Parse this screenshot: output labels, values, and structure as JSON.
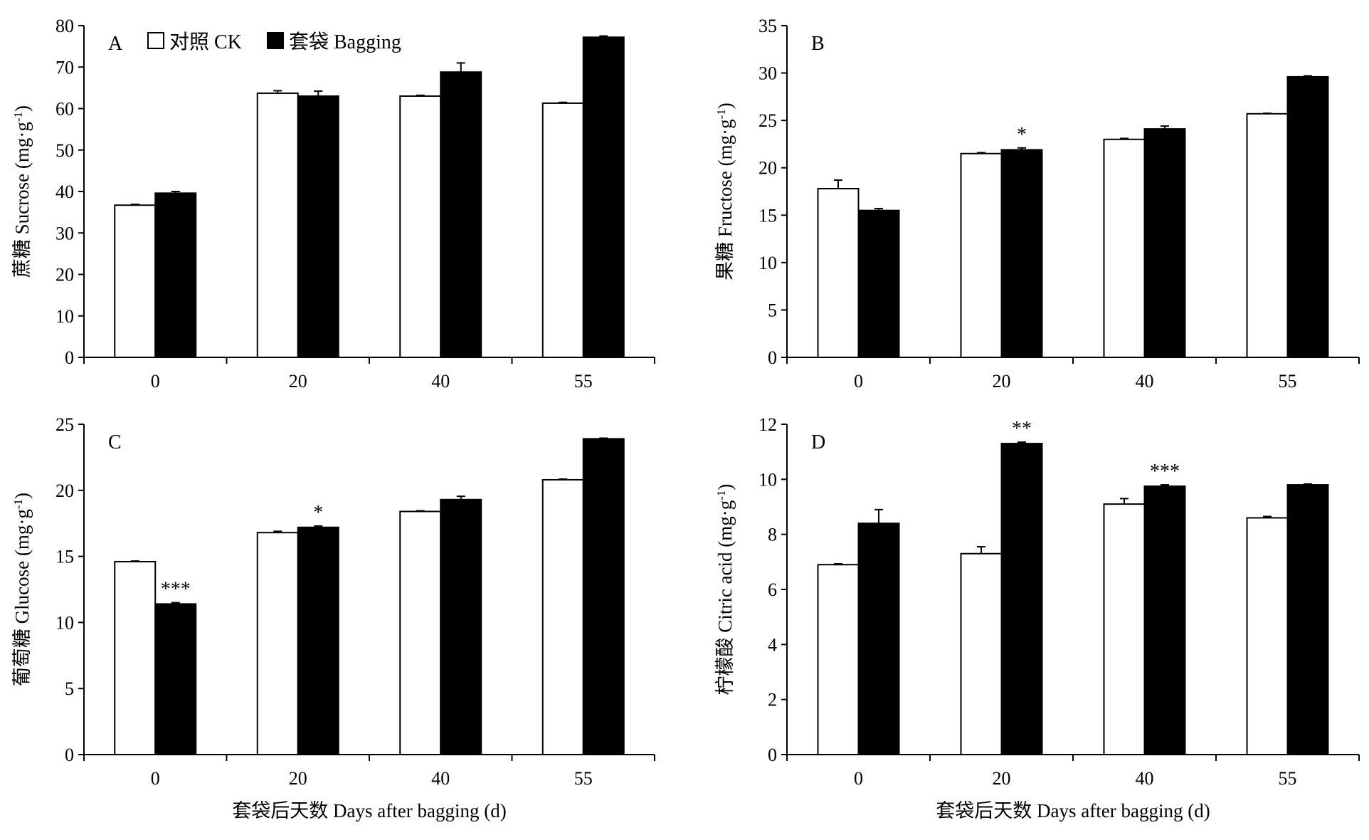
{
  "legend": {
    "items": [
      {
        "label": "对照 CK",
        "fill": "#ffffff"
      },
      {
        "label": "套袋 Bagging",
        "fill": "#000000"
      }
    ]
  },
  "colors": {
    "ck": "#ffffff",
    "bagging": "#000000",
    "stroke": "#000000"
  },
  "chart_data": [
    {
      "type": "bar",
      "panel": "A",
      "ylabel": "蔗糖 Sucrose (mg·g-1)",
      "ylabel_main": "蔗糖 Sucrose (mg·g",
      "ylabel_sup": "-1",
      "ylabel_close": ")",
      "xlabel": "",
      "ylim": [
        0,
        80
      ],
      "yticks": [
        0,
        10,
        20,
        30,
        40,
        50,
        60,
        70,
        80
      ],
      "categories": [
        "0",
        "20",
        "40",
        "55"
      ],
      "series": [
        {
          "name": "对照 CK",
          "values": [
            36.7,
            63.7,
            63.0,
            61.3
          ],
          "errors": [
            0.2,
            0.6,
            0.2,
            0.2
          ]
        },
        {
          "name": "套袋 Bagging",
          "values": [
            39.6,
            63.0,
            68.8,
            77.2
          ],
          "errors": [
            0.4,
            1.2,
            2.2,
            0.3
          ]
        }
      ],
      "annotations": [
        "",
        "",
        "",
        ""
      ],
      "legend_position": "top-left"
    },
    {
      "type": "bar",
      "panel": "B",
      "ylabel": "果糖 Fructose (mg·g-1)",
      "ylabel_main": "果糖 Fructose (mg·g",
      "ylabel_sup": "-1",
      "ylabel_close": ")",
      "xlabel": "",
      "ylim": [
        0,
        35
      ],
      "yticks": [
        0,
        5,
        10,
        15,
        20,
        25,
        30,
        35
      ],
      "categories": [
        "0",
        "20",
        "40",
        "55"
      ],
      "series": [
        {
          "name": "对照 CK",
          "values": [
            17.8,
            21.5,
            23.0,
            25.7
          ],
          "errors": [
            0.9,
            0.1,
            0.1,
            0.05
          ]
        },
        {
          "name": "套袋 Bagging",
          "values": [
            15.5,
            21.9,
            24.1,
            29.6
          ],
          "errors": [
            0.2,
            0.2,
            0.3,
            0.1
          ]
        }
      ],
      "annotations": [
        "",
        "*",
        "",
        ""
      ]
    },
    {
      "type": "bar",
      "panel": "C",
      "ylabel": "葡萄糖 Glucose (mg·g-1)",
      "ylabel_main": "葡萄糖 Glucose (mg·g",
      "ylabel_sup": "-1",
      "ylabel_close": ")",
      "xlabel": "套袋后天数 Days after bagging (d)",
      "ylim": [
        0,
        25
      ],
      "yticks": [
        0,
        5,
        10,
        15,
        20,
        25
      ],
      "categories": [
        "0",
        "20",
        "40",
        "55"
      ],
      "series": [
        {
          "name": "对照 CK",
          "values": [
            14.6,
            16.8,
            18.4,
            20.8
          ],
          "errors": [
            0.05,
            0.1,
            0.05,
            0.05
          ]
        },
        {
          "name": "套袋 Bagging",
          "values": [
            11.4,
            17.2,
            19.3,
            23.9
          ],
          "errors": [
            0.1,
            0.1,
            0.25,
            0.05
          ]
        }
      ],
      "annotations": [
        "***",
        "*",
        "",
        ""
      ]
    },
    {
      "type": "bar",
      "panel": "D",
      "ylabel": "柠檬酸 Citric acid (mg·g-1)",
      "ylabel_main": "柠檬酸 Citric acid (mg·g",
      "ylabel_sup": "-1",
      "ylabel_close": ")",
      "xlabel": "套袋后天数 Days after bagging (d)",
      "ylim": [
        0,
        12
      ],
      "yticks": [
        0,
        2,
        4,
        6,
        8,
        10,
        12
      ],
      "categories": [
        "0",
        "20",
        "40",
        "55"
      ],
      "series": [
        {
          "name": "对照 CK",
          "values": [
            6.9,
            7.3,
            9.1,
            8.6
          ],
          "errors": [
            0.03,
            0.25,
            0.2,
            0.05
          ]
        },
        {
          "name": "套袋 Bagging",
          "values": [
            8.4,
            11.3,
            9.75,
            9.8
          ],
          "errors": [
            0.5,
            0.05,
            0.05,
            0.03
          ]
        }
      ],
      "annotations": [
        "",
        "**",
        "***",
        ""
      ]
    }
  ]
}
